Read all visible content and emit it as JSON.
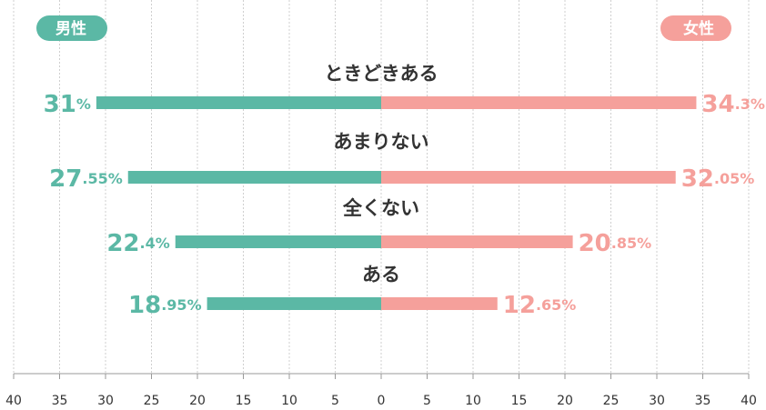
{
  "chart_data": {
    "type": "butterfly-bar",
    "categories": [
      "ときどきある",
      "あまりない",
      "全くない",
      "ある"
    ],
    "series": [
      {
        "name": "男性",
        "color": "#5bb8a5",
        "values": [
          31,
          27.55,
          22.4,
          18.95
        ],
        "value_labels": [
          "31%",
          "27.55%",
          "22.4%",
          "18.95%"
        ]
      },
      {
        "name": "女性",
        "color": "#f5a09b",
        "values": [
          34.3,
          32.05,
          20.85,
          12.65
        ],
        "value_labels": [
          "34.3%",
          "32.05%",
          "20.85%",
          "12.65%"
        ]
      }
    ],
    "xlim": [
      0,
      40
    ],
    "xticks": [
      0,
      5,
      10,
      15,
      20,
      25,
      30,
      35,
      40
    ],
    "grid": true
  }
}
